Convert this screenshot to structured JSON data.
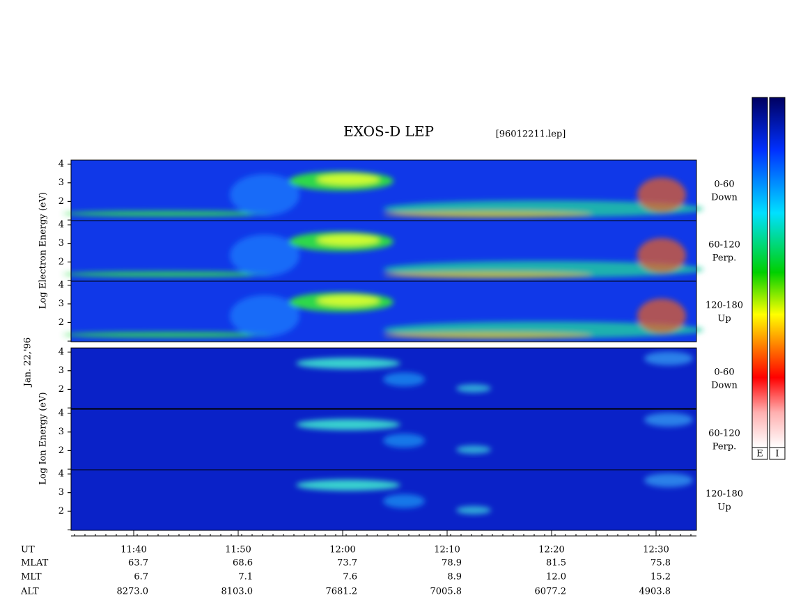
{
  "title": "EXOS-D LEP",
  "file": "[96012211.lep]",
  "date": "Jan. 22,'96",
  "electron_label": "Log Electron Energy (eV)",
  "ion_label": "Log Ion Energy (eV)",
  "yticks": [
    2,
    3,
    4
  ],
  "pitch_angles": [
    {
      "range": "0-60",
      "dir": "Down"
    },
    {
      "range": "60-120",
      "dir": "Perp."
    },
    {
      "range": "120-180",
      "dir": "Up"
    }
  ],
  "colorbars": [
    "E",
    "I"
  ],
  "orbit": {
    "names": [
      "UT",
      "MLAT",
      "MLT",
      "ALT"
    ],
    "ut": [
      "11:40",
      "11:50",
      "12:00",
      "12:10",
      "12:20",
      "12:30"
    ],
    "mlat": [
      "63.7",
      "68.6",
      "73.7",
      "78.9",
      "81.5",
      "75.8"
    ],
    "mlt": [
      "6.7",
      "7.1",
      "7.6",
      "8.9",
      "12.0",
      "15.2"
    ],
    "alt": [
      "8273.0",
      "8103.0",
      "7681.2",
      "7005.8",
      "6077.2",
      "4903.8"
    ]
  }
}
